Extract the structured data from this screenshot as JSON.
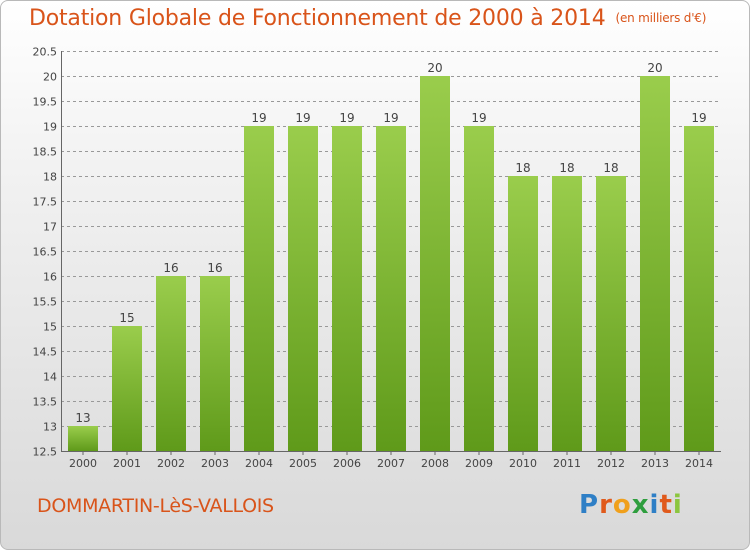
{
  "title": "Dotation Globale de Fonctionnement de 2000 à 2014",
  "subtitle": "(en milliers d'€)",
  "city": "DOMMARTIN-LèS-VALLOIS",
  "logo": {
    "text": "Proxiti",
    "letter_colors": [
      "#2e7fc6",
      "#e05a1c",
      "#f0a01c",
      "#2e9e3e",
      "#2e7fc6",
      "#e05a1c",
      "#8cc63f"
    ]
  },
  "colors": {
    "accent": "#d9541a",
    "bar_top": "#9acd4c",
    "bar_bottom": "#5f9a1a",
    "grid": "#999999"
  },
  "chart_data": {
    "type": "bar",
    "categories": [
      "2000",
      "2001",
      "2002",
      "2003",
      "2004",
      "2005",
      "2006",
      "2007",
      "2008",
      "2009",
      "2010",
      "2011",
      "2012",
      "2013",
      "2014"
    ],
    "values": [
      13,
      15,
      16,
      16,
      19,
      19,
      19,
      19,
      20,
      19,
      18,
      18,
      18,
      20,
      19
    ],
    "data_labels": [
      "13",
      "15",
      "16",
      "16",
      "19",
      "19",
      "19",
      "19",
      "20",
      "19",
      "18",
      "18",
      "18",
      "20",
      "19"
    ],
    "ylim": [
      12.5,
      20.5
    ],
    "yticks": [
      12.5,
      13,
      13.5,
      14,
      14.5,
      15,
      15.5,
      16,
      16.5,
      17,
      17.5,
      18,
      18.5,
      19,
      19.5,
      20,
      20.5
    ],
    "ytick_labels": [
      "12.5",
      "13",
      "13.5",
      "14",
      "14.5",
      "15",
      "15.5",
      "16",
      "16.5",
      "17",
      "17.5",
      "18",
      "18.5",
      "19",
      "19.5",
      "20",
      "20.5"
    ],
    "grid": true,
    "xlabel": "",
    "ylabel": ""
  }
}
